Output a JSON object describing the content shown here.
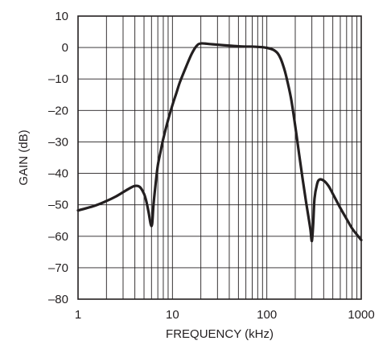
{
  "chart_data": {
    "type": "line",
    "title": "",
    "xlabel": "FREQUENCY (kHz)",
    "ylabel": "GAIN (dB)",
    "xscale": "log",
    "xlim": [
      1,
      1000
    ],
    "ylim": [
      -80,
      10
    ],
    "x_ticks": [
      1,
      10,
      100,
      1000
    ],
    "x_tick_labels": [
      "1",
      "10",
      "100",
      "1000"
    ],
    "y_ticks": [
      10,
      0,
      -10,
      -20,
      -30,
      -40,
      -50,
      -60,
      -70,
      -80
    ],
    "y_tick_labels": [
      "10",
      "0",
      "–10",
      "–20",
      "–30",
      "–40",
      "–50",
      "–60",
      "–70",
      "–80"
    ],
    "grid": true,
    "series": [
      {
        "x": [
          1,
          1.5,
          2,
          2.5,
          3,
          3.5,
          4,
          4.5,
          5,
          5.3,
          5.6,
          5.9,
          6.1,
          6.3,
          6.6,
          7,
          7.5,
          8,
          9,
          10,
          11,
          12,
          14,
          16,
          18,
          20,
          25,
          30,
          40,
          50,
          60,
          70,
          80,
          90,
          100,
          110,
          120,
          130,
          140,
          150,
          160,
          180,
          200,
          220,
          240,
          260,
          280,
          290,
          300,
          310,
          320,
          340,
          360,
          400,
          450,
          500,
          600,
          700,
          800,
          900,
          1000
        ],
        "y": [
          -51.8,
          -50.3,
          -48.8,
          -47.4,
          -46,
          -44.8,
          -44,
          -44.3,
          -46.5,
          -49,
          -52.5,
          -56.3,
          -56,
          -50,
          -44,
          -37.5,
          -33,
          -29,
          -23,
          -18.3,
          -14.5,
          -11,
          -6,
          -2,
          0.5,
          1.3,
          1.1,
          0.9,
          0.6,
          0.4,
          0.3,
          0.3,
          0.2,
          0.1,
          -0.1,
          -0.4,
          -0.9,
          -1.8,
          -3.5,
          -6,
          -9,
          -16,
          -25,
          -34,
          -42,
          -49,
          -55,
          -58,
          -61.5,
          -56,
          -48,
          -43.5,
          -42,
          -42.3,
          -44,
          -46.5,
          -51,
          -54.5,
          -57.5,
          -59.5,
          -61.2
        ]
      }
    ]
  }
}
